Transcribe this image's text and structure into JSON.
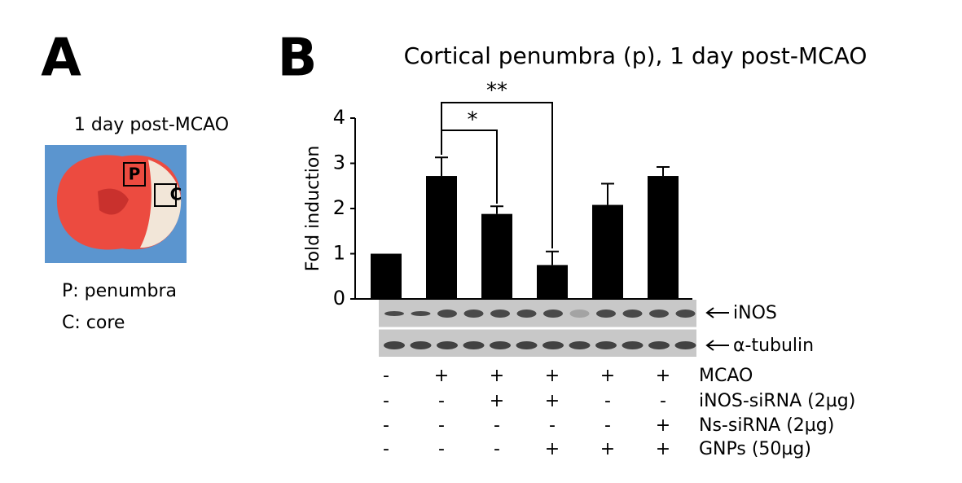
{
  "panel_a": {
    "letter": "A",
    "caption": "1 day post-MCAO",
    "box_p": "P",
    "box_c": "C",
    "legend": [
      "P: penumbra",
      "C: core"
    ]
  },
  "panel_b": {
    "letter": "B",
    "blot_labels": [
      "iNOS",
      "α-tubulin"
    ],
    "conditions": [
      {
        "label": "MCAO",
        "marks": [
          "-",
          "+",
          "+",
          "+",
          "+",
          "+"
        ]
      },
      {
        "label": "iNOS-siRNA (2µg)",
        "marks": [
          "-",
          "-",
          "+",
          "+",
          "-",
          "-"
        ]
      },
      {
        "label": "Ns-siRNA (2µg)",
        "marks": [
          "-",
          "-",
          "-",
          "-",
          "-",
          "+"
        ]
      },
      {
        "label": "GNPs (50µg)",
        "marks": [
          "-",
          "-",
          "-",
          "+",
          "+",
          "+"
        ]
      }
    ]
  },
  "chart_data": {
    "type": "bar",
    "title": "Cortical penumbra (p), 1 day post-MCAO",
    "y_label": "Fold induction",
    "categories": [
      null,
      null,
      null,
      null,
      null,
      null
    ],
    "values": [
      1.0,
      2.72,
      1.88,
      0.75,
      2.08,
      2.72
    ],
    "errors": [
      null,
      0.41,
      0.17,
      0.3,
      0.47,
      0.2
    ],
    "color": "#000000",
    "ylim": [
      0,
      4
    ],
    "yticks": [
      0,
      1,
      2,
      3,
      4
    ],
    "annotations": [
      "**",
      "*"
    ]
  }
}
